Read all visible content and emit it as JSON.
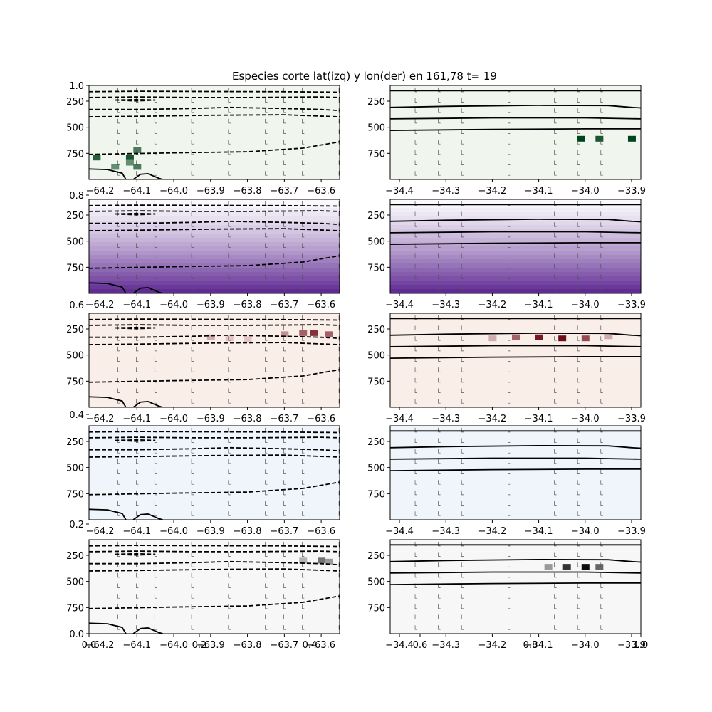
{
  "figure": {
    "title": "Especies corte lat(izq) y lon(der) en 161,78 t= 19"
  },
  "chart_data": {
    "type": "heatmap",
    "background_axis": {
      "x_ticks": [
        "0.0",
        "0.2",
        "0.4",
        "0.6",
        "0.8",
        "1.0"
      ],
      "y_ticks": [
        "0.0",
        "0.2",
        "0.4",
        "0.6",
        "0.8",
        "1.0"
      ],
      "xlim": [
        0,
        1
      ],
      "ylim": [
        0,
        1
      ]
    },
    "left_x_ticks": [
      "−64.2",
      "−64.1",
      "−64.0",
      "−63.9",
      "−63.8",
      "−63.7",
      "−63.6"
    ],
    "left_x_values": [
      -64.2,
      -64.1,
      -64.0,
      -63.9,
      -63.8,
      -63.7,
      -63.6
    ],
    "left_xlim": [
      -64.23,
      -63.55
    ],
    "right_x_ticks": [
      "−34.4",
      "−34.3",
      "−34.2",
      "−34.1",
      "−34.0",
      "−33.9"
    ],
    "right_x_values": [
      -34.4,
      -34.3,
      -34.2,
      -34.1,
      -34.0,
      -33.9
    ],
    "right_xlim": [
      -34.42,
      -33.88
    ],
    "y_ticks": [
      "250",
      "500",
      "750"
    ],
    "y_values": [
      250,
      500,
      750
    ],
    "ylim": [
      1000,
      100
    ],
    "y_inverted": true,
    "rows": [
      {
        "colormap": "Greens",
        "colors": [
          "#f7fcf5",
          "#00441b"
        ],
        "x_ticks_shown": true
      },
      {
        "colormap": "Purples",
        "colors": [
          "#fcfbfd",
          "#3f007d"
        ],
        "x_ticks_shown": true
      },
      {
        "colormap": "Reds",
        "colors": [
          "#fff5f0",
          "#67000d"
        ],
        "x_ticks_shown": true
      },
      {
        "colormap": "Blues",
        "colors": [
          "#f7fbff",
          "#08306b"
        ],
        "x_ticks_shown": true
      },
      {
        "colormap": "Greys",
        "colors": [
          "#ffffff",
          "#000000"
        ],
        "x_ticks_shown": false
      }
    ],
    "left_contours": {
      "style": "dashed",
      "lines": [
        [
          [
            -64.23,
            160
          ],
          [
            -64.1,
            155
          ],
          [
            -63.9,
            158
          ],
          [
            -63.7,
            160
          ],
          [
            -63.55,
            165
          ]
        ],
        [
          [
            -64.23,
            215
          ],
          [
            -64.1,
            210
          ],
          [
            -63.95,
            215
          ],
          [
            -63.8,
            215
          ],
          [
            -63.6,
            210
          ],
          [
            -63.55,
            215
          ]
        ],
        [
          [
            -64.23,
            330
          ],
          [
            -64.1,
            330
          ],
          [
            -63.95,
            320
          ],
          [
            -63.85,
            310
          ],
          [
            -63.7,
            320
          ],
          [
            -63.6,
            330
          ],
          [
            -63.55,
            340
          ]
        ],
        [
          [
            -64.23,
            400
          ],
          [
            -64.1,
            395
          ],
          [
            -63.9,
            385
          ],
          [
            -63.7,
            380
          ],
          [
            -63.55,
            400
          ]
        ],
        [
          [
            -64.23,
            760
          ],
          [
            -64.0,
            745
          ],
          [
            -63.8,
            735
          ],
          [
            -63.65,
            700
          ],
          [
            -63.55,
            640
          ]
        ]
      ],
      "islands": [
        [
          [
            -64.16,
            240
          ],
          [
            -64.1,
            235
          ],
          [
            -64.05,
            240
          ],
          [
            -64.1,
            248
          ],
          [
            -64.16,
            240
          ]
        ]
      ],
      "solid_lines": [
        [
          [
            -64.23,
            900
          ],
          [
            -64.18,
            905
          ],
          [
            -64.14,
            940
          ],
          [
            -64.13,
            1000
          ]
        ],
        [
          [
            -64.11,
            1000
          ],
          [
            -64.09,
            950
          ],
          [
            -64.07,
            945
          ],
          [
            -64.04,
            990
          ],
          [
            -64.03,
            1000
          ]
        ]
      ]
    },
    "right_contours": {
      "style": "solid",
      "lines": [
        [
          [
            -34.42,
            150
          ],
          [
            -33.88,
            150
          ]
        ],
        [
          [
            -34.42,
            310
          ],
          [
            -34.3,
            300
          ],
          [
            -34.1,
            290
          ],
          [
            -33.95,
            292
          ],
          [
            -33.9,
            310
          ],
          [
            -33.88,
            315
          ]
        ],
        [
          [
            -34.42,
            420
          ],
          [
            -34.2,
            410
          ],
          [
            -34.0,
            410
          ],
          [
            -33.88,
            420
          ]
        ],
        [
          [
            -34.42,
            530
          ],
          [
            -34.2,
            520
          ],
          [
            -34.0,
            515
          ],
          [
            -33.88,
            515
          ]
        ]
      ]
    },
    "panels": [
      {
        "row": 0,
        "side": "left",
        "cells": [
          [
            -64.21,
            790,
            0.85
          ],
          [
            -64.16,
            880,
            0.6
          ],
          [
            -64.12,
            790,
            0.9
          ],
          [
            -64.12,
            840,
            0.6
          ],
          [
            -64.1,
            720,
            0.7
          ],
          [
            -64.1,
            880,
            0.7
          ]
        ]
      },
      {
        "row": 0,
        "side": "right",
        "cells": [
          [
            -34.01,
            610,
            1.0
          ],
          [
            -33.97,
            610,
            0.9
          ],
          [
            -33.9,
            610,
            1.0
          ]
        ]
      },
      {
        "row": 1,
        "side": "left",
        "gradient": true,
        "cells": []
      },
      {
        "row": 1,
        "side": "right",
        "gradient": true,
        "cells": []
      },
      {
        "row": 2,
        "side": "left",
        "cells": [
          [
            -63.9,
            330,
            0.3
          ],
          [
            -63.85,
            340,
            0.2
          ],
          [
            -63.8,
            350,
            0.2
          ],
          [
            -63.7,
            300,
            0.4
          ],
          [
            -63.65,
            290,
            0.6
          ],
          [
            -63.62,
            290,
            0.8
          ],
          [
            -63.58,
            300,
            0.6
          ]
        ]
      },
      {
        "row": 2,
        "side": "right",
        "cells": [
          [
            -34.2,
            340,
            0.3
          ],
          [
            -34.15,
            330,
            0.6
          ],
          [
            -34.1,
            330,
            0.9
          ],
          [
            -34.05,
            340,
            0.95
          ],
          [
            -34.0,
            340,
            0.7
          ],
          [
            -33.95,
            320,
            0.3
          ]
        ]
      },
      {
        "row": 3,
        "side": "left",
        "cells": []
      },
      {
        "row": 3,
        "side": "right",
        "cells": []
      },
      {
        "row": 4,
        "side": "left",
        "cells": [
          [
            -63.65,
            300,
            0.3
          ],
          [
            -63.6,
            300,
            0.55
          ],
          [
            -63.58,
            310,
            0.4
          ]
        ]
      },
      {
        "row": 4,
        "side": "right",
        "cells": [
          [
            -34.08,
            360,
            0.4
          ],
          [
            -34.04,
            360,
            0.8
          ],
          [
            -34.0,
            360,
            0.95
          ],
          [
            -33.97,
            360,
            0.6
          ]
        ]
      }
    ]
  }
}
